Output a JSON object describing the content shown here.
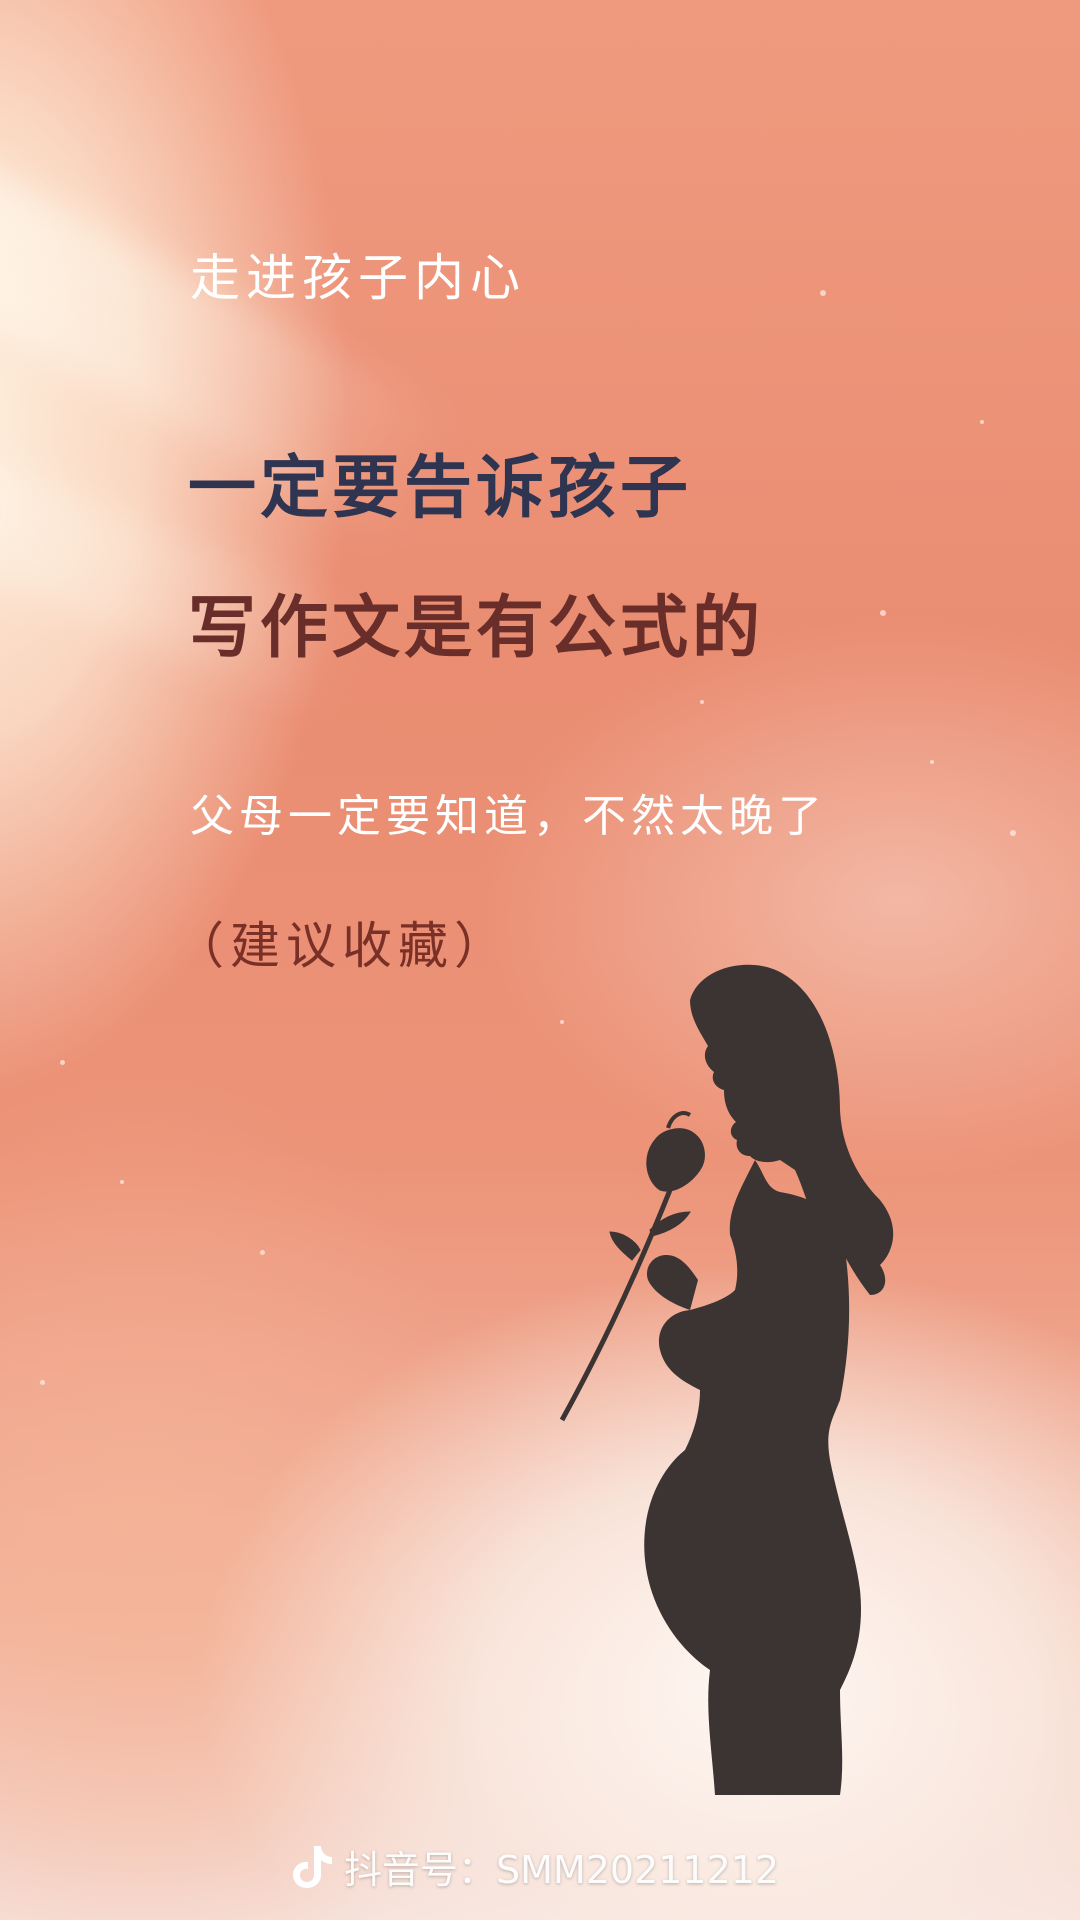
{
  "poster": {
    "subtitle": "走进孩子内心",
    "headline_line1": "一定要告诉孩子",
    "headline_line2": "写作文是有公式的",
    "tagline": "父母一定要知道，不然太晚了",
    "note": "（建议收藏）"
  },
  "footer": {
    "icon": "douyin-logo-icon",
    "account_label": "抖音号：SMM20211212"
  },
  "colors": {
    "background_coral": "#ec9378",
    "headline_dark_blue": "#2f3550",
    "headline_maroon": "#6a2e2a",
    "note_red_brown": "#7a3027",
    "silhouette": "#3b3433"
  }
}
